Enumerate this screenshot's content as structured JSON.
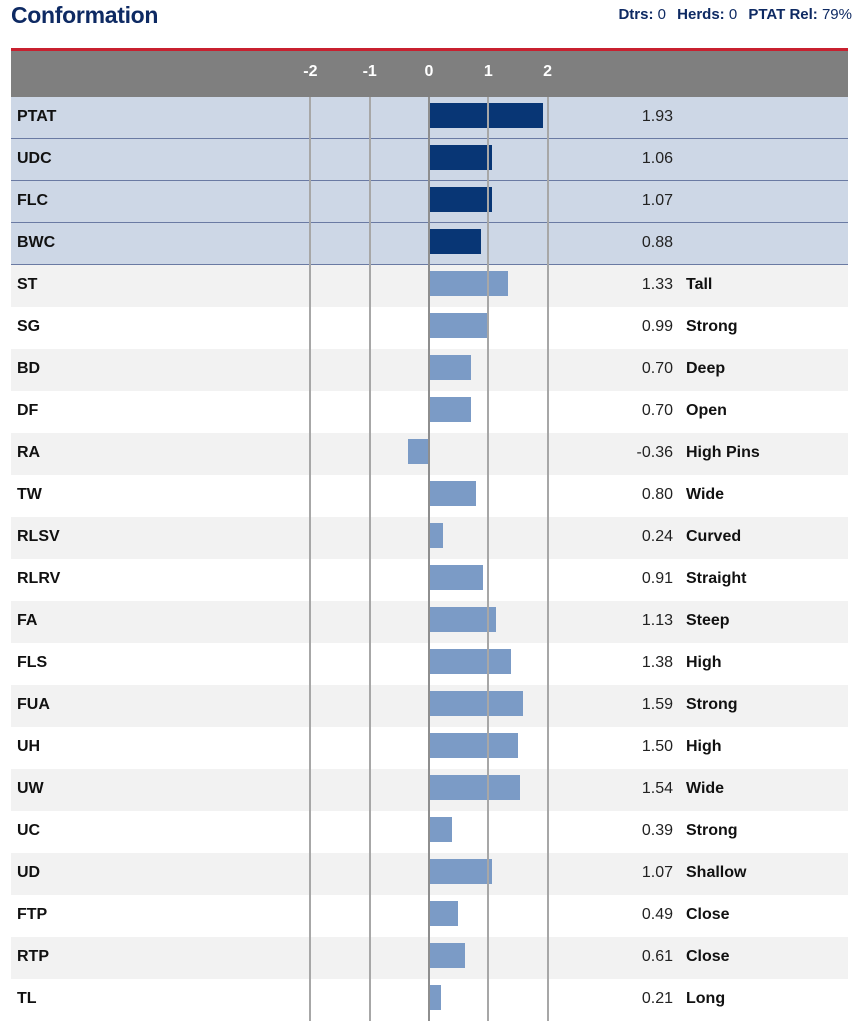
{
  "header": {
    "title": "Conformation",
    "dtrs_label": "Dtrs:",
    "dtrs_value": "0",
    "herds_label": "Herds:",
    "herds_value": "0",
    "rel_label": "PTAT Rel:",
    "rel_value": "79%"
  },
  "colors": {
    "title": "#0e2a63",
    "accent_line": "#c8202f",
    "axis_bar": "#7f7f7f",
    "composite_bar": "#083675",
    "linear_bar": "#7b9bc6",
    "composite_row_bg": "#cdd7e6"
  },
  "chart_data": {
    "type": "bar",
    "orientation": "horizontal",
    "xlim": [
      -2.1,
      2.1
    ],
    "ticks": [
      -2,
      -1,
      0,
      1,
      2
    ],
    "grid": true,
    "categories": [
      "PTAT",
      "UDC",
      "FLC",
      "BWC",
      "ST",
      "SG",
      "BD",
      "DF",
      "RA",
      "TW",
      "RLSV",
      "RLRV",
      "FA",
      "FLS",
      "FUA",
      "UH",
      "UW",
      "UC",
      "UD",
      "FTP",
      "RTP",
      "TL"
    ],
    "values": [
      1.93,
      1.06,
      1.07,
      0.88,
      1.33,
      0.99,
      0.7,
      0.7,
      -0.36,
      0.8,
      0.24,
      0.91,
      1.13,
      1.38,
      1.59,
      1.5,
      1.54,
      0.39,
      1.07,
      0.49,
      0.61,
      0.21
    ],
    "value_labels": [
      "1.93",
      "1.06",
      "1.07",
      "0.88",
      "1.33",
      "0.99",
      "0.70",
      "0.70",
      "-0.36",
      "0.80",
      "0.24",
      "0.91",
      "1.13",
      "1.38",
      "1.59",
      "1.50",
      "1.54",
      "0.39",
      "1.07",
      "0.49",
      "0.61",
      "0.21"
    ],
    "descriptors": [
      "",
      "",
      "",
      "",
      "Tall",
      "Strong",
      "Deep",
      "Open",
      "High Pins",
      "Wide",
      "Curved",
      "Straight",
      "Steep",
      "High",
      "Strong",
      "High",
      "Wide",
      "Strong",
      "Shallow",
      "Close",
      "Close",
      "Long"
    ],
    "composite_count": 4
  }
}
